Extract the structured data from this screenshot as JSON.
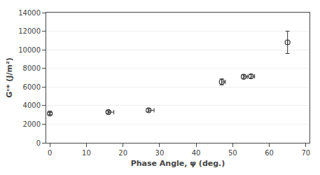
{
  "chart_data": {
    "type": "scatter",
    "x": [
      0,
      16,
      27,
      47,
      53,
      55,
      65
    ],
    "y": [
      3150,
      3300,
      3500,
      6550,
      7100,
      7150,
      10800
    ],
    "yerr": [
      120,
      120,
      180,
      320,
      200,
      200,
      1200
    ],
    "xerr_lo": [
      0,
      0,
      0,
      0,
      0,
      0,
      0
    ],
    "xerr_hi": [
      0,
      1.5,
      1.5,
      1,
      1,
      1,
      0
    ],
    "xlabel": "Phase Angle, ψ (deg.)",
    "ylabel": "Gᶜ* (J/m²)",
    "xlim": [
      -1,
      71
    ],
    "ylim": [
      0,
      14000
    ],
    "xticks": [
      0,
      10,
      20,
      30,
      40,
      50,
      60,
      70
    ],
    "yticks": [
      0,
      2000,
      4000,
      6000,
      8000,
      10000,
      12000,
      14000
    ],
    "color": "#333333",
    "marker": "circle-open",
    "grid": "y"
  }
}
